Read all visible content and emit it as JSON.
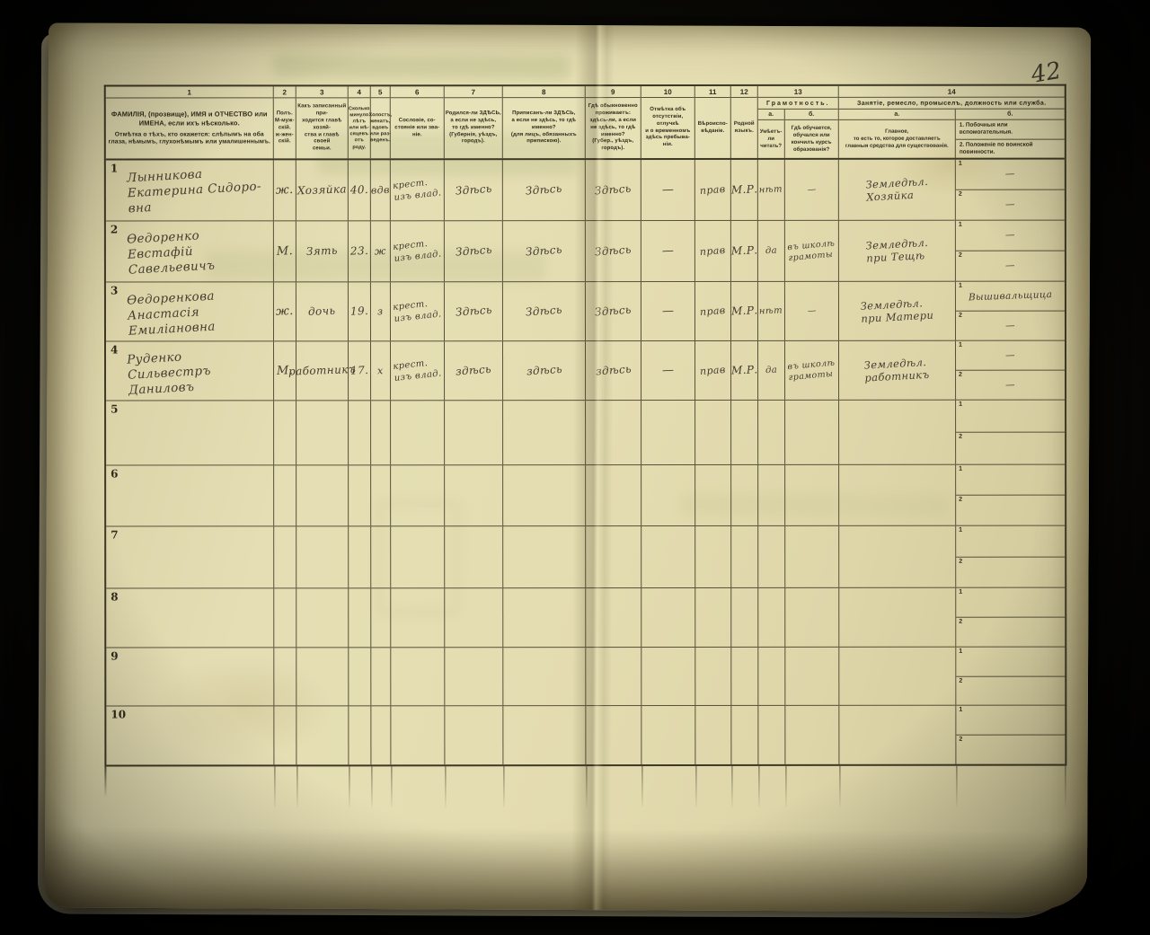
{
  "page": {
    "page_number": "42"
  },
  "table": {
    "column_numbers": [
      "1",
      "2",
      "3",
      "4",
      "5",
      "6",
      "7",
      "8",
      "9",
      "10",
      "11",
      "12",
      "13",
      "14"
    ],
    "sub_numbers": [
      "1",
      "2"
    ],
    "headers": {
      "c1a": "ФАМИЛІЯ, (прозвище), ИМЯ и ОТЧЕСТВО или ИМЕНА, если ихъ нѣсколько.",
      "c1b": "Отмѣтка о тѣхъ, кто окажется: слѣпымъ на оба глаза, нѣмымъ, глухонѣмымъ или умалишеннымъ.",
      "c2": "Полъ.\nМ-муж-\nскій.\nж-жен-\nскій.",
      "c3": "Какъ записанный при-\nходится главѣ хозяй-\nства и главѣ своей\nсемьи.",
      "c4": "Сколько\nминуло\nлѣтъ\nили мѣ-\nсяцевъ\nотъ роду.",
      "c5": "Холостъ,\nженатъ,\nвдовъ\nили раз-\nведенъ.",
      "c6": "Сословіе, со-\nстояніе или зва-\nніе.",
      "c7": "Родился-ли ЗДѢСЬ,\nа если не здѣсь,\nто гдѣ именно?\n(Губернія, уѣздъ, городъ).",
      "c8": "Приписанъ-ли ЗДѢСЬ,\nа если не здѣсь, то гдѣ\nименно?\n(для лицъ, обязанныхъ\nприпискою).",
      "c9": "Гдѣ обыкновенно\nпроживаетъ:\nздѣсь-ли, а если\nне здѣсь, то гдѣ\nименно?\n(Губер., уѣздъ, городъ).",
      "c10": "Отмѣтка объ\nотсутствіи, отлучкѣ\nи о временномъ\nздѣсь пребыва-\nніи.",
      "c11": "Вѣроиспо-\nвѣданіе.",
      "c12": "Родной\nязыкъ.",
      "c13_group": "Грамотность.",
      "c13a_num": "а.",
      "c13b_num": "б.",
      "c13a": "Умѣетъ-\nли\nчитать?",
      "c13b": "Гдѣ обучается,\nобучался или\nкончилъ курсъ\nобразованія?",
      "c14_group": "Занятіе, ремесло, промыселъ, должность или служба.",
      "c14a_num": "а.",
      "c14b_num": "б.",
      "c14a": "Главное,\nто есть то, которое доставляетъ\nглавныя средства для существованія.",
      "c14b1": "1.  Побочныя или вспомогательныя.",
      "c14b2": "2.  Положеніе по воинской повинности."
    },
    "rows": [
      {
        "num": "1",
        "name": "Лынникова\nЕкатерина Сидоро-\nвна",
        "sex": "ж.",
        "relation": "Хозяйка",
        "age": "40.",
        "marital": "вдв",
        "estate": "крест.\nизъ влад.",
        "born": "Здѣсь",
        "registered": "Здѣсь",
        "resides": "Здѣсь",
        "absence": "—",
        "religion": "прав",
        "language": "М.Р.",
        "reads": "нѣт",
        "education": "—",
        "occupation": "Земледѣл.\nХозяйка",
        "side1": "—",
        "side2": "—"
      },
      {
        "num": "2",
        "name": "Ѳедоренко\nЕвстафій Савельевичъ",
        "sex": "М.",
        "relation": "Зять",
        "age": "23.",
        "marital": "ж",
        "estate": "крест.\nизъ влад.",
        "born": "Здѣсь",
        "registered": "Здѣсь",
        "resides": "Здѣсь",
        "absence": "—",
        "religion": "прав",
        "language": "М.Р.",
        "reads": "да",
        "education": "въ школѣ\nграмоты",
        "occupation": "Земледѣл.\nпри Тещѣ",
        "side1": "—",
        "side2": "—"
      },
      {
        "num": "3",
        "name": "Ѳедоренкова\nАнастасія Емиліановна",
        "sex": "ж.",
        "relation": "дочь",
        "age": "19.",
        "marital": "з",
        "estate": "крест.\nизъ влад.",
        "born": "Здѣсь",
        "registered": "Здѣсь",
        "resides": "Здѣсь",
        "absence": "—",
        "religion": "прав",
        "language": "М.Р.",
        "reads": "нѣт",
        "education": "—",
        "occupation": "Земледѣл.\nпри Матери",
        "side1": "Вышивальщица",
        "side2": "—"
      },
      {
        "num": "4",
        "name": "Руденко\nСильвестръ Даниловъ",
        "sex": "М.",
        "relation": "работникъ",
        "age": "17.",
        "marital": "х",
        "estate": "крест.\nизъ влад.",
        "born": "здѣсь",
        "registered": "здѣсь",
        "resides": "здѣсь",
        "absence": "—",
        "religion": "прав",
        "language": "М.Р.",
        "reads": "да",
        "education": "въ школѣ\nграмоты",
        "occupation": "Земледѣл.\nработникъ",
        "side1": "—",
        "side2": "—"
      },
      {
        "num": "5"
      },
      {
        "num": "6"
      },
      {
        "num": "7"
      },
      {
        "num": "8"
      },
      {
        "num": "9"
      },
      {
        "num": "10"
      }
    ]
  }
}
